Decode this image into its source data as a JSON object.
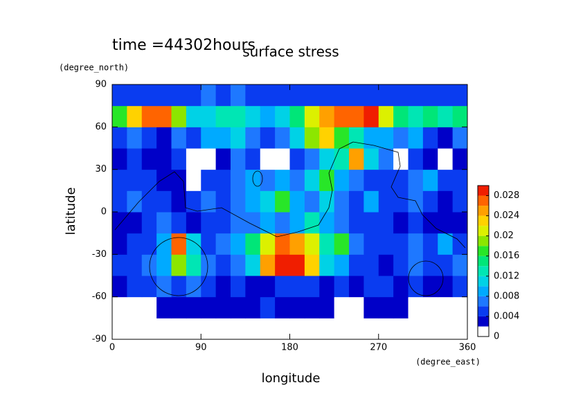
{
  "chart_data": {
    "type": "contour",
    "title": "surface stress",
    "annotation": "time =44302hours",
    "x_label": "longitude",
    "y_label": "latitude",
    "x_unit": "(degree_east)",
    "y_unit": "(degree_north)",
    "xlim": [
      0,
      360
    ],
    "xticks": [
      0,
      90,
      180,
      270,
      360
    ],
    "ylim": [
      -90,
      90
    ],
    "yticks": [
      -90,
      -60,
      -30,
      0,
      30,
      60,
      90
    ],
    "x": [
      7.5,
      22.5,
      37.5,
      52.5,
      67.5,
      82.5,
      97.5,
      112.5,
      127.5,
      142.5,
      157.5,
      172.5,
      187.5,
      202.5,
      217.5,
      232.5,
      247.5,
      262.5,
      277.5,
      292.5,
      307.5,
      322.5,
      337.5,
      352.5
    ],
    "y": [
      -82.5,
      -67.5,
      -52.5,
      -37.5,
      -22.5,
      -7.5,
      7.5,
      22.5,
      37.5,
      52.5,
      67.5,
      82.5
    ],
    "z": [
      [
        0,
        0,
        0,
        0,
        0,
        0,
        0,
        0,
        0,
        0,
        0,
        0,
        0,
        0,
        0,
        0,
        0,
        0,
        0,
        0,
        0,
        0,
        0,
        0
      ],
      [
        0,
        0,
        0,
        0.002,
        0.003,
        0.003,
        0.003,
        0.002,
        0.003,
        0.003,
        0.004,
        0.003,
        0.003,
        0.003,
        0.003,
        0,
        0,
        0.002,
        0.003,
        0.003,
        0,
        0,
        0,
        0
      ],
      [
        0.003,
        0.004,
        0.005,
        0.006,
        0.004,
        0.006,
        0.004,
        0.003,
        0.004,
        0.003,
        0.002,
        0.004,
        0.005,
        0.004,
        0.003,
        0.004,
        0.003,
        0.004,
        0.004,
        0.003,
        0.004,
        0.002,
        0.003,
        0.004
      ],
      [
        0.004,
        0.005,
        0.006,
        0.008,
        0.018,
        0.012,
        0.006,
        0.005,
        0.006,
        0.01,
        0.024,
        0.028,
        0.028,
        0.022,
        0.01,
        0.008,
        0.004,
        0.005,
        0.003,
        0.004,
        0.006,
        0.004,
        0.004,
        0.006
      ],
      [
        0.003,
        0.004,
        0.004,
        0.008,
        0.026,
        0.01,
        0.004,
        0.006,
        0.008,
        0.014,
        0.02,
        0.026,
        0.024,
        0.02,
        0.012,
        0.016,
        0.006,
        0.005,
        0.004,
        0.004,
        0.006,
        0.004,
        0.008,
        0.005
      ],
      [
        0.002,
        0.003,
        0.004,
        0.006,
        0.004,
        0.003,
        0.004,
        0.005,
        0.006,
        0.006,
        0.008,
        0.006,
        0.008,
        0.012,
        0.008,
        0.006,
        0.004,
        0.005,
        0.004,
        0.003,
        0.004,
        0.003,
        0.002,
        0.002
      ],
      [
        0.004,
        0.006,
        0.005,
        0.004,
        0.003,
        0.004,
        0.006,
        0.005,
        0.006,
        0.008,
        0.01,
        0.016,
        0.008,
        0.006,
        0.01,
        0.006,
        0.004,
        0.008,
        0.005,
        0.004,
        0.006,
        0.004,
        0.003,
        0.004
      ],
      [
        0.004,
        0.005,
        0.004,
        0.003,
        0.002,
        0,
        0.004,
        0.005,
        0.006,
        0.008,
        0.006,
        0.008,
        0.006,
        0.01,
        0.016,
        0.008,
        0.006,
        0.004,
        0.005,
        0.004,
        0.006,
        0.008,
        0.004,
        0.004
      ],
      [
        0.002,
        0.004,
        0.003,
        0.002,
        0.004,
        0,
        0,
        0.003,
        0.006,
        0.004,
        0,
        0,
        0.004,
        0.006,
        0.01,
        0.012,
        0.024,
        0.01,
        0.006,
        0,
        0.004,
        0.003,
        0,
        0.002
      ],
      [
        0.004,
        0.006,
        0.004,
        0.002,
        0.006,
        0.004,
        0.008,
        0.008,
        0.01,
        0.006,
        0.004,
        0.006,
        0.01,
        0.018,
        0.022,
        0.016,
        0.012,
        0.008,
        0.008,
        0.006,
        0.008,
        0.004,
        0.002,
        0.006
      ],
      [
        0.016,
        0.022,
        0.026,
        0.026,
        0.018,
        0.01,
        0.01,
        0.012,
        0.012,
        0.01,
        0.008,
        0.01,
        0.014,
        0.02,
        0.024,
        0.026,
        0.026,
        0.028,
        0.02,
        0.014,
        0.012,
        0.014,
        0.012,
        0.014
      ],
      [
        0.004,
        0.004,
        0.005,
        0.005,
        0.004,
        0.004,
        0.006,
        0.004,
        0.006,
        0.005,
        0.004,
        0.004,
        0.004,
        0.005,
        0.004,
        0.004,
        0.004,
        0.004,
        0.004,
        0.005,
        0.004,
        0.004,
        0.005,
        0.004
      ]
    ],
    "levels": [
      0,
      0.002,
      0.004,
      0.006,
      0.008,
      0.01,
      0.012,
      0.014,
      0.016,
      0.018,
      0.02,
      0.022,
      0.024,
      0.026,
      0.028,
      0.03
    ],
    "colors": [
      "#ffffff",
      "#0000c8",
      "#0a3cf0",
      "#1e78ff",
      "#00aaff",
      "#00d2e6",
      "#00e6b4",
      "#00e678",
      "#28e628",
      "#8ce600",
      "#dcf000",
      "#ffd200",
      "#ffa000",
      "#ff6400",
      "#f01e00"
    ],
    "colorbar_ticks": [
      0,
      0.004,
      0.008,
      0.012,
      0.016,
      0.02,
      0.024,
      0.028
    ]
  }
}
